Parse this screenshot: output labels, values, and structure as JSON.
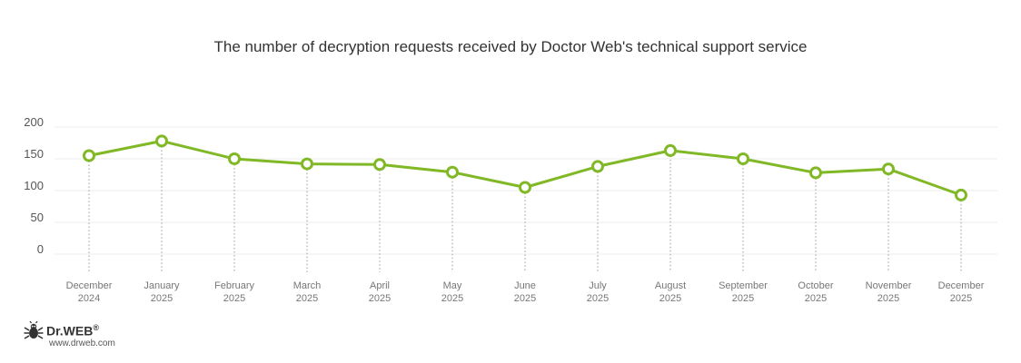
{
  "chart_data": {
    "type": "line",
    "title": "The number of decryption requests received by Doctor Web's technical support service",
    "xlabel": "",
    "ylabel": "",
    "ylim": [
      0,
      200
    ],
    "yticks": [
      0,
      50,
      100,
      150,
      200
    ],
    "grid": true,
    "legend": "none",
    "categories": [
      [
        "December",
        "2024"
      ],
      [
        "January",
        "2025"
      ],
      [
        "February",
        "2025"
      ],
      [
        "March",
        "2025"
      ],
      [
        "April",
        "2025"
      ],
      [
        "May",
        "2025"
      ],
      [
        "June",
        "2025"
      ],
      [
        "July",
        "2025"
      ],
      [
        "August",
        "2025"
      ],
      [
        "September",
        "2025"
      ],
      [
        "October",
        "2025"
      ],
      [
        "November",
        "2025"
      ],
      [
        "December",
        "2025"
      ]
    ],
    "series": [
      {
        "values": [
          155,
          178,
          150,
          142,
          141,
          129,
          105,
          138,
          163,
          150,
          128,
          134,
          93
        ]
      }
    ],
    "colors": {
      "line": "#80b826",
      "grid": "#eeeeee",
      "guide": "#999999"
    }
  },
  "brand": {
    "name": "Dr.WEB",
    "mark": "®",
    "url": "www.drweb.com"
  }
}
